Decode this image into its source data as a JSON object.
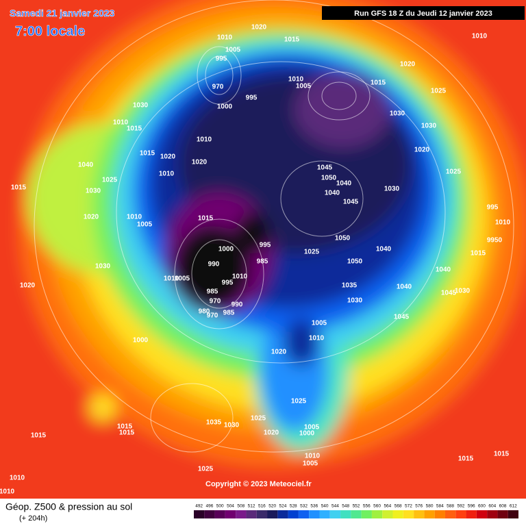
{
  "header": {
    "date": "Samedi 21 janvier 2023",
    "time": "7:00 locale",
    "run": "Run GFS 18 Z du Jeudi 12 janvier 2023"
  },
  "footer": {
    "title": "Géop. Z500 & pression au sol",
    "lead": "(+ 204h)",
    "copyright": "Copyright © 2023 Meteociel.fr"
  },
  "scale": {
    "values": [
      492,
      496,
      500,
      504,
      508,
      512,
      516,
      520,
      524,
      528,
      532,
      536,
      540,
      544,
      548,
      552,
      556,
      560,
      564,
      568,
      572,
      576,
      580,
      584,
      588,
      592,
      596,
      600,
      604,
      608,
      612
    ],
    "colors": [
      "#2a0028",
      "#40003e",
      "#580058",
      "#700070",
      "#7a1a8a",
      "#5a2a7a",
      "#3a2a6a",
      "#1a1a5a",
      "#0a2a9a",
      "#0040d0",
      "#1060f0",
      "#2090ff",
      "#30b0ff",
      "#40d0f0",
      "#40e0c0",
      "#50e890",
      "#70f060",
      "#a0f040",
      "#d0f030",
      "#f0f020",
      "#ffe020",
      "#ffc010",
      "#ffa000",
      "#ff8000",
      "#ff6010",
      "#ff4010",
      "#f02010",
      "#d00010",
      "#a00010",
      "#700010",
      "#400010"
    ]
  },
  "isobars": {
    "labels": [
      1010,
      1020,
      1015,
      1010,
      1005,
      995,
      970,
      1000,
      995,
      1010,
      1005,
      1020,
      1015,
      1025,
      1030,
      1010,
      1015,
      1030,
      1030,
      1010,
      1015,
      1020,
      1020,
      1020,
      1025,
      1010,
      1040,
      1045,
      1050,
      1040,
      1040,
      1045,
      1030,
      1015,
      1025,
      1030,
      995,
      1010,
      9950,
      1015,
      1010,
      1005,
      1020,
      1000,
      995,
      985,
      1050,
      1040,
      1015,
      1030,
      990,
      1025,
      1050,
      1020,
      1010,
      1005,
      1010,
      995,
      985,
      970,
      990,
      985,
      980,
      970,
      1035,
      1040,
      1040,
      1045,
      1030,
      1030,
      1045,
      1005,
      1010,
      1000,
      1020,
      1025,
      1015,
      1015,
      1035,
      1030,
      1025,
      1015,
      1020,
      1005,
      1000,
      1010,
      1005,
      1015,
      1015,
      1025,
      1010,
      1010
    ]
  }
}
